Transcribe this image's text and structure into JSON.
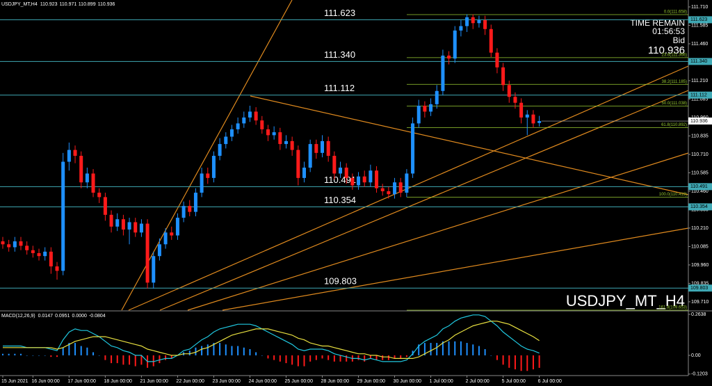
{
  "chart_data": {
    "type": "candlestick",
    "title": "USDJPY_MT,H4",
    "watermark": "USDJPY_MT_H4",
    "info": {
      "time_label": "TIME REMAIN",
      "time": "01:56:53",
      "bid_label": "Bid"
    },
    "up_color": "#1e90ff",
    "down_color": "#ff1a1a",
    "categories": [
      "15 Jun 2021",
      null,
      null,
      null,
      null,
      "16 Jun 00:00",
      null,
      null,
      null,
      null,
      null,
      "17 Jun 00:00",
      null,
      null,
      null,
      null,
      null,
      "18 Jun 00:00",
      null,
      null,
      null,
      null,
      null,
      "21 Jun 00:00",
      null,
      null,
      null,
      null,
      null,
      "22 Jun 00:00",
      null,
      null,
      null,
      null,
      null,
      "23 Jun 00:00",
      null,
      null,
      null,
      null,
      null,
      "24 Jun 00:00",
      null,
      null,
      null,
      null,
      null,
      "25 Jun 00:00",
      null,
      null,
      null,
      null,
      null,
      "28 Jun 00:00",
      null,
      null,
      null,
      null,
      null,
      "29 Jun 00:00",
      null,
      null,
      null,
      null,
      null,
      "30 Jun 00:00",
      null,
      null,
      null,
      null,
      null,
      "1 Jul 00:00",
      null,
      null,
      null,
      null,
      null,
      "2 Jul 00:00",
      null,
      null,
      null,
      null,
      null,
      "5 Jul 00:00",
      null,
      null,
      null,
      null,
      null,
      "6 Jul 00:00"
    ],
    "ohlc": [
      [
        110.12,
        110.15,
        110.07,
        110.1
      ],
      [
        110.1,
        110.13,
        110.05,
        110.08
      ],
      [
        110.08,
        110.15,
        110.05,
        110.12
      ],
      [
        110.12,
        110.15,
        110.06,
        110.09
      ],
      [
        110.09,
        110.12,
        110.03,
        110.06
      ],
      [
        110.06,
        110.09,
        110.01,
        110.04
      ],
      [
        110.04,
        110.07,
        109.99,
        110.02
      ],
      [
        110.02,
        110.08,
        109.99,
        110.05
      ],
      [
        110.05,
        110.08,
        109.9,
        109.95
      ],
      [
        109.95,
        109.98,
        109.86,
        109.92
      ],
      [
        109.92,
        110.72,
        109.89,
        110.66
      ],
      [
        110.66,
        110.79,
        110.6,
        110.74
      ],
      [
        110.74,
        110.77,
        110.65,
        110.7
      ],
      [
        110.7,
        110.73,
        110.48,
        110.52
      ],
      [
        110.52,
        110.62,
        110.48,
        110.58
      ],
      [
        110.58,
        110.61,
        110.42,
        110.45
      ],
      [
        110.45,
        110.48,
        110.38,
        110.42
      ],
      [
        110.42,
        110.45,
        110.26,
        110.3
      ],
      [
        110.3,
        110.33,
        110.18,
        110.22
      ],
      [
        110.22,
        110.31,
        110.19,
        110.27
      ],
      [
        110.27,
        110.3,
        110.16,
        110.2
      ],
      [
        110.2,
        110.28,
        110.1,
        110.25
      ],
      [
        110.25,
        110.28,
        110.15,
        110.18
      ],
      [
        110.18,
        110.27,
        110.15,
        110.24
      ],
      [
        110.24,
        110.27,
        109.8,
        109.84
      ],
      [
        109.84,
        110.05,
        109.8,
        110.02
      ],
      [
        110.02,
        110.14,
        109.99,
        110.1
      ],
      [
        110.1,
        110.21,
        110.07,
        110.18
      ],
      [
        110.18,
        110.22,
        110.13,
        110.16
      ],
      [
        110.16,
        110.31,
        110.13,
        110.28
      ],
      [
        110.28,
        110.39,
        110.25,
        110.36
      ],
      [
        110.36,
        110.4,
        110.29,
        110.32
      ],
      [
        110.32,
        110.48,
        110.29,
        110.45
      ],
      [
        110.45,
        110.62,
        110.42,
        110.58
      ],
      [
        110.58,
        110.62,
        110.51,
        110.55
      ],
      [
        110.55,
        110.73,
        110.52,
        110.7
      ],
      [
        110.7,
        110.82,
        110.67,
        110.78
      ],
      [
        110.78,
        110.86,
        110.75,
        110.83
      ],
      [
        110.83,
        110.91,
        110.8,
        110.88
      ],
      [
        110.88,
        110.96,
        110.85,
        110.92
      ],
      [
        110.92,
        111.0,
        110.89,
        110.96
      ],
      [
        110.96,
        111.04,
        110.93,
        111.0
      ],
      [
        111.0,
        111.03,
        110.91,
        110.94
      ],
      [
        110.94,
        110.97,
        110.85,
        110.88
      ],
      [
        110.88,
        110.91,
        110.8,
        110.84
      ],
      [
        110.84,
        110.9,
        110.81,
        110.86
      ],
      [
        110.86,
        110.89,
        110.74,
        110.78
      ],
      [
        110.78,
        110.84,
        110.75,
        110.8
      ],
      [
        110.8,
        110.83,
        110.7,
        110.74
      ],
      [
        110.74,
        110.77,
        110.5,
        110.55
      ],
      [
        110.55,
        110.66,
        110.52,
        110.62
      ],
      [
        110.62,
        110.81,
        110.59,
        110.78
      ],
      [
        110.78,
        110.81,
        110.68,
        110.72
      ],
      [
        110.72,
        110.84,
        110.69,
        110.8
      ],
      [
        110.8,
        110.83,
        110.66,
        110.7
      ],
      [
        110.7,
        110.73,
        110.54,
        110.58
      ],
      [
        110.58,
        110.66,
        110.55,
        110.62
      ],
      [
        110.62,
        110.65,
        110.51,
        110.55
      ],
      [
        110.55,
        110.58,
        110.47,
        110.5
      ],
      [
        110.5,
        110.59,
        110.47,
        110.56
      ],
      [
        110.56,
        110.6,
        110.49,
        110.52
      ],
      [
        110.52,
        110.64,
        110.49,
        110.6
      ],
      [
        110.6,
        110.63,
        110.45,
        110.48
      ],
      [
        110.48,
        110.51,
        110.43,
        110.46
      ],
      [
        110.46,
        110.49,
        110.41,
        110.44
      ],
      [
        110.44,
        110.55,
        110.41,
        110.52
      ],
      [
        110.52,
        110.55,
        110.42,
        110.45
      ],
      [
        110.45,
        110.61,
        110.42,
        110.58
      ],
      [
        110.58,
        110.96,
        110.55,
        110.92
      ],
      [
        110.92,
        111.08,
        110.89,
        111.04
      ],
      [
        111.04,
        111.07,
        110.96,
        111.0
      ],
      [
        111.0,
        111.09,
        110.97,
        111.05
      ],
      [
        111.05,
        111.18,
        111.02,
        111.14
      ],
      [
        111.14,
        111.42,
        111.11,
        111.38
      ],
      [
        111.38,
        111.41,
        111.32,
        111.36
      ],
      [
        111.36,
        111.58,
        111.33,
        111.55
      ],
      [
        111.55,
        111.62,
        111.51,
        111.58
      ],
      [
        111.58,
        111.66,
        111.54,
        111.64
      ],
      [
        111.64,
        111.66,
        111.56,
        111.6
      ],
      [
        111.6,
        111.65,
        111.57,
        111.62
      ],
      [
        111.62,
        111.65,
        111.52,
        111.56
      ],
      [
        111.56,
        111.59,
        111.37,
        111.4
      ],
      [
        111.4,
        111.43,
        111.26,
        111.3
      ],
      [
        111.3,
        111.33,
        111.14,
        111.18
      ],
      [
        111.18,
        111.21,
        111.06,
        111.1
      ],
      [
        111.1,
        111.13,
        111.02,
        111.06
      ],
      [
        111.06,
        111.09,
        110.92,
        110.96
      ],
      [
        110.96,
        111.01,
        110.84,
        110.98
      ],
      [
        110.98,
        111.01,
        110.89,
        110.92
      ],
      [
        110.923,
        110.971,
        110.899,
        110.936
      ]
    ],
    "ylim": [
      109.653,
      111.757
    ],
    "yticks": [
      {
        "value": 111.71,
        "label": "111.710"
      },
      {
        "value": 111.585,
        "label": "111.585"
      },
      {
        "value": 111.46,
        "label": "111.460"
      },
      {
        "value": 111.335,
        "label": "111.335"
      },
      {
        "value": 111.21,
        "label": "111.210"
      },
      {
        "value": 111.085,
        "label": "111.085"
      },
      {
        "value": 110.96,
        "label": "110.960"
      },
      {
        "value": 110.835,
        "label": "110.835"
      },
      {
        "value": 110.71,
        "label": "110.710"
      },
      {
        "value": 110.585,
        "label": "110.585"
      },
      {
        "value": 110.46,
        "label": "110.460"
      },
      {
        "value": 110.335,
        "label": "110.335"
      },
      {
        "value": 110.21,
        "label": "110.210"
      },
      {
        "value": 110.085,
        "label": "110.085"
      },
      {
        "value": 109.96,
        "label": "109.960"
      },
      {
        "value": 109.835,
        "label": "109.835"
      },
      {
        "value": 109.71,
        "label": "109.710"
      }
    ],
    "level_color": "#3fa9b5",
    "levels": [
      {
        "value": 111.623,
        "label": "111.623"
      },
      {
        "value": 111.34,
        "label": "111.340"
      },
      {
        "value": 111.112,
        "label": "111.112"
      },
      {
        "value": 110.491,
        "label": "110.491"
      },
      {
        "value": 110.354,
        "label": "110.354"
      },
      {
        "value": 109.803,
        "label": "109.803"
      }
    ],
    "fibo_color": "#9acd32",
    "fibo": [
      {
        "value": 111.658,
        "label": "0.0(111.658)"
      },
      {
        "value": 111.366,
        "label": "23.6(111.366)"
      },
      {
        "value": 111.185,
        "label": "38.2(111.185)"
      },
      {
        "value": 111.038,
        "label": "50.0(111.038)"
      },
      {
        "value": 110.892,
        "label": "61.8(110.892)"
      },
      {
        "value": 110.419,
        "label": "100.0(110.419)"
      },
      {
        "value": 109.653,
        "label": "161.8(109.653)"
      }
    ],
    "indicator": {
      "name": "MACD(12,26,9)",
      "extra": "0.0000",
      "main_color": "#20c8e0",
      "signal_color": "#e8e040",
      "main": [
        0.06,
        0.06,
        0.06,
        0.06,
        0.05,
        0.05,
        0.05,
        0.05,
        0.04,
        0.03,
        0.1,
        0.15,
        0.17,
        0.16,
        0.16,
        0.14,
        0.12,
        0.09,
        0.06,
        0.05,
        0.03,
        0.02,
        0.0,
        0.0,
        -0.04,
        -0.04,
        -0.03,
        -0.02,
        -0.02,
        0.0,
        0.03,
        0.04,
        0.07,
        0.1,
        0.12,
        0.15,
        0.17,
        0.18,
        0.19,
        0.2,
        0.2,
        0.2,
        0.19,
        0.17,
        0.15,
        0.13,
        0.11,
        0.09,
        0.07,
        0.04,
        0.03,
        0.04,
        0.04,
        0.04,
        0.03,
        0.01,
        0.0,
        -0.01,
        -0.02,
        -0.02,
        -0.03,
        -0.02,
        -0.03,
        -0.04,
        -0.04,
        -0.04,
        -0.04,
        -0.03,
        0.01,
        0.06,
        0.09,
        0.11,
        0.13,
        0.17,
        0.19,
        0.22,
        0.24,
        0.25,
        0.26,
        0.26,
        0.25,
        0.22,
        0.19,
        0.15,
        0.12,
        0.09,
        0.06,
        0.04,
        0.03,
        0.0147
      ],
      "signal": [
        0.05,
        0.05,
        0.05,
        0.05,
        0.05,
        0.05,
        0.05,
        0.05,
        0.05,
        0.04,
        0.05,
        0.07,
        0.09,
        0.1,
        0.11,
        0.12,
        0.12,
        0.12,
        0.11,
        0.1,
        0.09,
        0.08,
        0.07,
        0.06,
        0.04,
        0.03,
        0.02,
        0.01,
        0.0,
        0.0,
        0.01,
        0.01,
        0.02,
        0.04,
        0.05,
        0.07,
        0.09,
        0.11,
        0.13,
        0.14,
        0.15,
        0.16,
        0.17,
        0.17,
        0.17,
        0.16,
        0.15,
        0.14,
        0.13,
        0.11,
        0.1,
        0.08,
        0.07,
        0.06,
        0.06,
        0.05,
        0.04,
        0.03,
        0.02,
        0.01,
        0.01,
        0.0,
        0.0,
        -0.01,
        -0.01,
        -0.02,
        -0.02,
        -0.02,
        -0.02,
        -0.01,
        0.01,
        0.03,
        0.05,
        0.08,
        0.1,
        0.13,
        0.15,
        0.17,
        0.19,
        0.2,
        0.21,
        0.22,
        0.22,
        0.21,
        0.2,
        0.18,
        0.16,
        0.14,
        0.12,
        0.0951
      ],
      "histogram": [
        0.01,
        0.01,
        0.01,
        0.01,
        0.0,
        0.0,
        0.0,
        0.0,
        -0.01,
        -0.01,
        0.05,
        0.08,
        0.08,
        0.06,
        0.05,
        0.02,
        0.0,
        -0.03,
        -0.05,
        -0.05,
        -0.06,
        -0.06,
        -0.07,
        -0.06,
        -0.08,
        -0.07,
        -0.05,
        -0.03,
        -0.02,
        0.0,
        0.02,
        0.03,
        0.05,
        0.06,
        0.07,
        0.08,
        0.08,
        0.07,
        0.06,
        0.06,
        0.05,
        0.04,
        0.02,
        0.0,
        -0.02,
        -0.03,
        -0.04,
        -0.05,
        -0.06,
        -0.07,
        -0.07,
        -0.04,
        -0.03,
        -0.02,
        -0.03,
        -0.04,
        -0.04,
        -0.04,
        -0.04,
        -0.03,
        -0.04,
        -0.02,
        -0.03,
        -0.03,
        -0.03,
        -0.02,
        -0.02,
        -0.01,
        0.03,
        0.07,
        0.08,
        0.08,
        0.08,
        0.09,
        0.09,
        0.09,
        0.09,
        0.08,
        0.07,
        0.06,
        0.04,
        0.0,
        -0.03,
        -0.06,
        -0.08,
        -0.09,
        -0.1,
        -0.1,
        -0.09,
        -0.0804
      ],
      "ylim": [
        -0.13,
        0.286
      ],
      "yticks": [
        0.2638,
        {
          "value": 0,
          "label": "0.00"
        },
        -0.1203
      ]
    }
  }
}
